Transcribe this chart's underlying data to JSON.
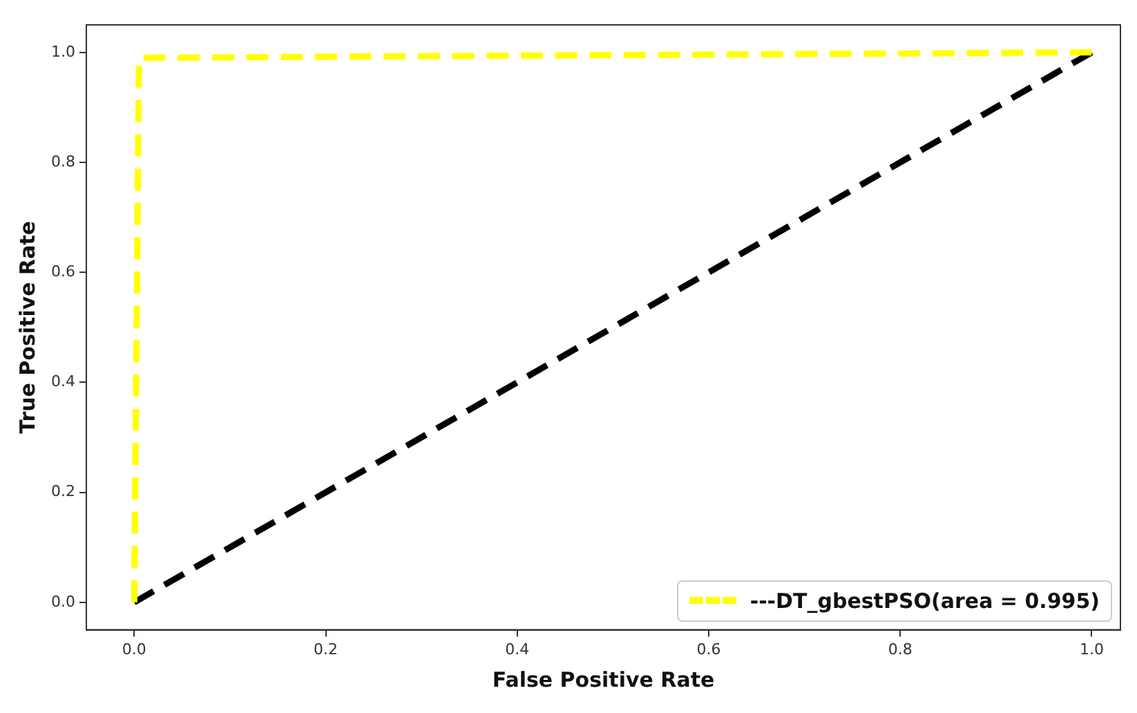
{
  "chart_data": {
    "type": "line",
    "xlabel": "False Positive Rate",
    "ylabel": "True Positive Rate",
    "xlim": [
      -0.05,
      1.03
    ],
    "ylim": [
      -0.05,
      1.05
    ],
    "xticks": [
      {
        "value": 0,
        "label": "0.0"
      },
      {
        "value": 0.2,
        "label": "0.2"
      },
      {
        "value": 0.4,
        "label": "0.4"
      },
      {
        "value": 0.6,
        "label": "0.6"
      },
      {
        "value": 0.8,
        "label": "0.8"
      },
      {
        "value": 1,
        "label": "1.0"
      }
    ],
    "yticks": [
      {
        "value": 0,
        "label": "0.0"
      },
      {
        "value": 0.2,
        "label": "0.2"
      },
      {
        "value": 0.4,
        "label": "0.4"
      },
      {
        "value": 0.6,
        "label": "0.6"
      },
      {
        "value": 0.8,
        "label": "0.8"
      },
      {
        "value": 1,
        "label": "1.0"
      }
    ],
    "series": [
      {
        "name": "---DT_gbestPSO(area = 0.995)",
        "color": "#ffff00",
        "x": [
          0,
          0.005,
          1
        ],
        "values": [
          0,
          0.99,
          1
        ]
      },
      {
        "color": "#000000",
        "x": [
          0,
          1
        ],
        "values": [
          0,
          1
        ]
      }
    ],
    "grid": false,
    "legend": "bottom right",
    "line_style": "dashed",
    "marker": "none"
  }
}
